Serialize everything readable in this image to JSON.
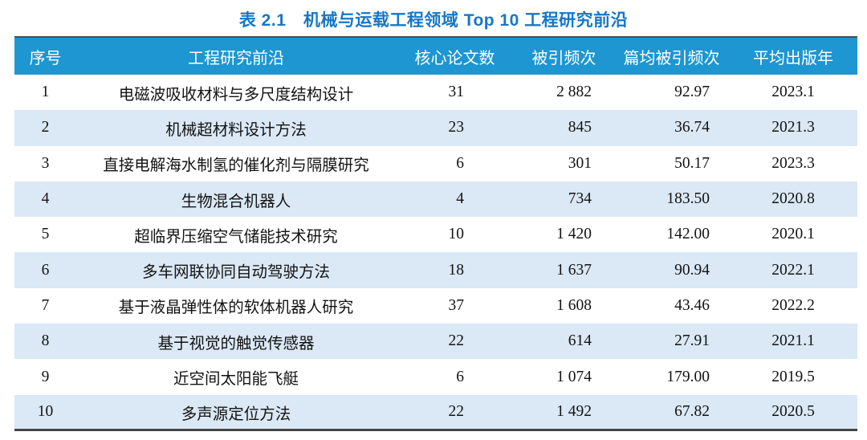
{
  "title": "表 2.1　机械与运载工程领域 Top 10 工程研究前沿",
  "colors": {
    "title_color": "#1677c8",
    "header_bg": "#1d96d2",
    "header_text": "#ffffff",
    "stripe_bg": "#dbe8f5",
    "body_text": "#131313",
    "bottom_rule": "#454545"
  },
  "table": {
    "columns": [
      {
        "key": "rank",
        "label": "序号"
      },
      {
        "key": "front",
        "label": "工程研究前沿"
      },
      {
        "key": "core_papers",
        "label": "核心论文数"
      },
      {
        "key": "citations",
        "label": "被引频次"
      },
      {
        "key": "cpp",
        "label": "篇均被引频次"
      },
      {
        "key": "year",
        "label": "平均出版年"
      }
    ],
    "rows": [
      [
        "1",
        "电磁波吸收材料与多尺度结构设计",
        "31",
        "2 882",
        "92.97",
        "2023.1"
      ],
      [
        "2",
        "机械超材料设计方法",
        "23",
        "845",
        "36.74",
        "2021.3"
      ],
      [
        "3",
        "直接电解海水制氢的催化剂与隔膜研究",
        "6",
        "301",
        "50.17",
        "2023.3"
      ],
      [
        "4",
        "生物混合机器人",
        "4",
        "734",
        "183.50",
        "2020.8"
      ],
      [
        "5",
        "超临界压缩空气储能技术研究",
        "10",
        "1 420",
        "142.00",
        "2020.1"
      ],
      [
        "6",
        "多车网联协同自动驾驶方法",
        "18",
        "1 637",
        "90.94",
        "2022.1"
      ],
      [
        "7",
        "基于液晶弹性体的软体机器人研究",
        "37",
        "1 608",
        "43.46",
        "2022.2"
      ],
      [
        "8",
        "基于视觉的触觉传感器",
        "22",
        "614",
        "27.91",
        "2021.1"
      ],
      [
        "9",
        "近空间太阳能飞艇",
        "6",
        "1 074",
        "179.00",
        "2019.5"
      ],
      [
        "10",
        "多声源定位方法",
        "22",
        "1 492",
        "67.82",
        "2020.5"
      ]
    ]
  }
}
